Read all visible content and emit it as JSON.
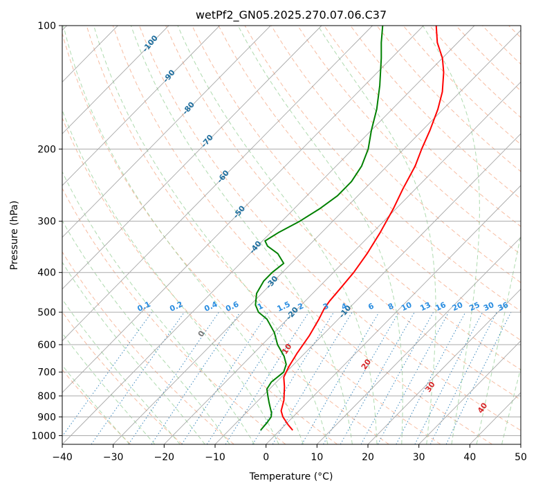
{
  "chart_data": {
    "type": "line",
    "title": "wetPf2_GN05.2025.270.07.06.C37",
    "xlabel": "Temperature (°C)",
    "ylabel": "Pressure (hPa)",
    "xlim": [
      -40,
      50
    ],
    "ylim": [
      1050,
      100
    ],
    "y_scale": "log",
    "x_ticks": [
      -40,
      -30,
      -20,
      -10,
      0,
      10,
      20,
      30,
      40,
      50
    ],
    "y_ticks": [
      100,
      200,
      300,
      400,
      500,
      600,
      700,
      800,
      900,
      1000
    ],
    "grid": true,
    "skew": "skew-T log-P",
    "series": [
      {
        "color": "#ff0000",
        "pressure": [
          970,
          940,
          900,
          870,
          820,
          760,
          720,
          680,
          630,
          570,
          520,
          490,
          470,
          440,
          400,
          360,
          320,
          280,
          250,
          220,
          200,
          180,
          160,
          145,
          130,
          120,
          110,
          100
        ],
        "values": [
          2.5,
          0.5,
          -2,
          -3.5,
          -5,
          -7.5,
          -9.5,
          -10.5,
          -11.5,
          -12.5,
          -13.8,
          -14.8,
          -15.2,
          -15.5,
          -16,
          -17,
          -18.5,
          -20.5,
          -22.5,
          -24.5,
          -26.5,
          -28.5,
          -31,
          -33.5,
          -37,
          -40,
          -44,
          -47.5
        ]
      },
      {
        "color": "#008000",
        "pressure": [
          970,
          930,
          900,
          880,
          860,
          830,
          800,
          770,
          740,
          700,
          670,
          640,
          600,
          560,
          520,
          500,
          480,
          450,
          420,
          400,
          380,
          360,
          345,
          335,
          320,
          300,
          280,
          260,
          240,
          220,
          200,
          180,
          160,
          140,
          120,
          110,
          100
        ],
        "values": [
          -3.8,
          -4,
          -4.3,
          -5,
          -6,
          -7.5,
          -9,
          -10.5,
          -11,
          -10.5,
          -11.5,
          -13.5,
          -17,
          -20,
          -24,
          -27,
          -29,
          -31,
          -32,
          -32,
          -31.5,
          -34.5,
          -38,
          -39.5,
          -38.5,
          -36.5,
          -35,
          -34,
          -34,
          -35,
          -37,
          -40,
          -43,
          -47,
          -52,
          -55,
          -58
        ]
      }
    ],
    "mixing_ratio_labels": [
      "0.1",
      "0.2",
      "0.4",
      "0.6",
      "1",
      "1.5",
      "2",
      "3",
      "4",
      "6",
      "8",
      "10",
      "13",
      "16",
      "20",
      "25",
      "30",
      "36"
    ],
    "dry_adiabat_labels": [
      "-100",
      "-90",
      "-80",
      "-70",
      "-60",
      "-50",
      "-40",
      "-30",
      "-20",
      "-10"
    ],
    "moist_adiabat_labels": [
      "0",
      "10",
      "20",
      "30",
      "40"
    ],
    "colors": {
      "temperature": "#ff0000",
      "dewpoint": "#008000",
      "dry_adiabat": "#f4a582",
      "moist_adiabat": "#9ad19a",
      "mixing_ratio": "#1f77b4",
      "isotherm": "#999999",
      "dry_label": "#1f6f9f",
      "mixing_label": "#2a8de0",
      "moist_label": "#d62728"
    }
  }
}
